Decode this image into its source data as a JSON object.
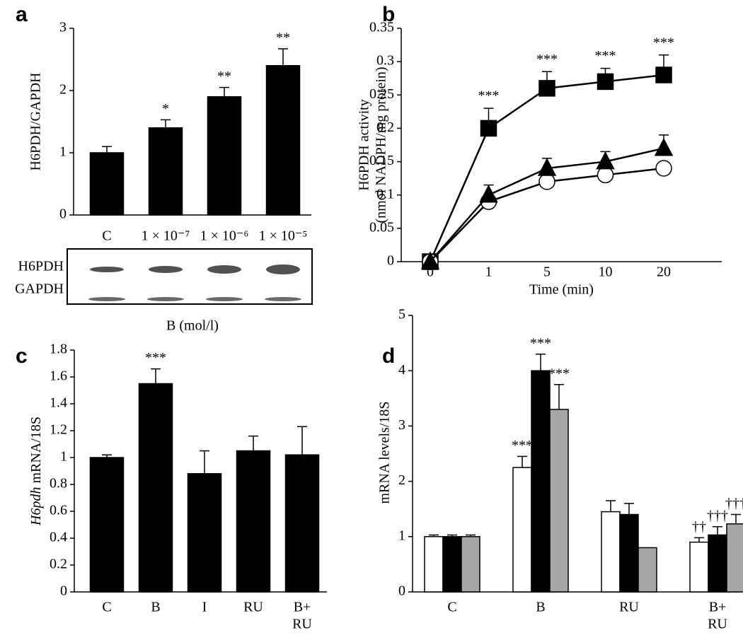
{
  "chart_data": [
    {
      "type": "bar",
      "panel": "a",
      "ylabel": [
        "H6PDH/GAPDH"
      ],
      "categories": [
        [
          "C"
        ],
        [
          "1 × 10⁻⁷"
        ],
        [
          "1 × 10⁻⁶"
        ],
        [
          "1 × 10⁻⁵"
        ]
      ],
      "series": [
        {
          "color": "#000000",
          "values": [
            1,
            1.4,
            1.9,
            2.4
          ],
          "errors": [
            0.1,
            0.13,
            0.15,
            0.27
          ],
          "annotations": [
            null,
            "*",
            "**",
            "**"
          ]
        }
      ],
      "ylim": [
        0,
        3
      ],
      "yticks": [
        0,
        1,
        2,
        3
      ],
      "blot_labels": [
        "H6PDH",
        "GAPDH"
      ],
      "xlabel": "B (mol/l)"
    },
    {
      "type": "line",
      "panel": "b",
      "ylabel": [
        "H6PDH activity",
        "(nmol NADPH/mg protein)"
      ],
      "categories": [
        [
          "0"
        ],
        [
          "1"
        ],
        [
          "5"
        ],
        [
          "10"
        ],
        [
          "20"
        ]
      ],
      "xlabel": "Time (min)",
      "series": [
        {
          "marker": "square",
          "color": "#000000",
          "fill": "#000000",
          "values": [
            0,
            0.2,
            0.26,
            0.27,
            0.28
          ],
          "errors": [
            null,
            0.03,
            0.025,
            0.02,
            0.03
          ],
          "annotations": [
            null,
            "***",
            "***",
            "***",
            "***"
          ]
        },
        {
          "marker": "circle",
          "color": "#000000",
          "fill": "#ffffff",
          "values": [
            0,
            0.09,
            0.12,
            0.13,
            0.14
          ]
        },
        {
          "marker": "triangle",
          "color": "#000000",
          "fill": "#000000",
          "values": [
            0,
            0.1,
            0.14,
            0.15,
            0.17
          ],
          "errors": [
            null,
            0.015,
            0.015,
            0.015,
            0.02
          ]
        }
      ],
      "ylim": [
        0,
        0.35
      ],
      "yticks": [
        0,
        0.05,
        0.1,
        0.15,
        0.2,
        0.25,
        0.3,
        0.35
      ]
    },
    {
      "type": "bar",
      "panel": "c",
      "ylabel_italic": "H6pdh",
      "ylabel": [
        "mRNA/18S"
      ],
      "categories": [
        [
          "C"
        ],
        [
          "B"
        ],
        [
          "I"
        ],
        [
          "RU"
        ],
        [
          "B+",
          "RU"
        ]
      ],
      "series": [
        {
          "color": "#000000",
          "values": [
            1,
            1.55,
            0.88,
            1.05,
            1.02
          ],
          "errors": [
            0.02,
            0.11,
            0.17,
            0.11,
            0.21
          ],
          "annotations": [
            null,
            "***",
            null,
            null,
            null
          ]
        }
      ],
      "ylim": [
        0,
        1.8
      ],
      "yticks": [
        0,
        0.2,
        0.4,
        0.6,
        0.8,
        1,
        1.2,
        1.4,
        1.6,
        1.8
      ]
    },
    {
      "type": "bar",
      "panel": "d",
      "ylabel": [
        "mRNA levels/18S"
      ],
      "categories": [
        [
          "C"
        ],
        [
          "B"
        ],
        [
          "RU"
        ],
        [
          "B+",
          "RU"
        ]
      ],
      "series": [
        {
          "color": "#ffffff",
          "values": [
            1,
            2.25,
            1.45,
            0.9
          ],
          "errors": [
            0.03,
            0.2,
            0.2,
            0.08
          ],
          "annotations": [
            null,
            "***",
            null,
            "††"
          ]
        },
        {
          "color": "#000000",
          "values": [
            1,
            4.0,
            1.4,
            1.03
          ],
          "errors": [
            0.03,
            0.3,
            0.2,
            0.15
          ],
          "annotations": [
            null,
            "***",
            null,
            "†††"
          ]
        },
        {
          "color": "#a6a6a6",
          "values": [
            1,
            3.3,
            0.8,
            1.23
          ],
          "errors": [
            0.03,
            0.45,
            null,
            0.17
          ],
          "annotations": [
            null,
            "***",
            null,
            "†††"
          ]
        }
      ],
      "ylim": [
        0,
        5
      ],
      "yticks": [
        0,
        1,
        2,
        3,
        4,
        5
      ]
    }
  ]
}
